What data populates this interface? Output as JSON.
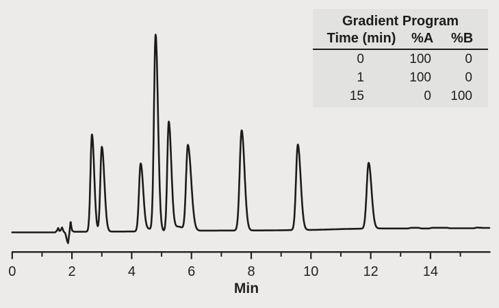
{
  "page": {
    "background_color": "#ecebe9"
  },
  "gradient_table": {
    "title": "Gradient Program",
    "columns": [
      "Time (min)",
      "%A",
      "%B"
    ],
    "rows": [
      [
        "0",
        "100",
        "0"
      ],
      [
        "1",
        "100",
        "0"
      ],
      [
        "15",
        "0",
        "100"
      ]
    ],
    "background_color": "#e2e2e0",
    "text_color": "#1c1c1c"
  },
  "chart_data": {
    "type": "line",
    "title": "",
    "xlabel": "Min",
    "ylabel": "",
    "x_range": [
      0,
      15.97
    ],
    "x_ticks_major": [
      0,
      2,
      4,
      6,
      8,
      10,
      12,
      14
    ],
    "x_ticks_minor": [
      1,
      3,
      5,
      7,
      9,
      11,
      13,
      15
    ],
    "grid": false,
    "line_color": "#1b1b1b",
    "axis_color": "#222222",
    "peaks": [
      {
        "retention_time_min": 2.67,
        "height_pct": 49.5,
        "sigma_left": 0.05,
        "sigma_right": 0.075
      },
      {
        "retention_time_min": 3.0,
        "height_pct": 43.2,
        "sigma_left": 0.05,
        "sigma_right": 0.085
      },
      {
        "retention_time_min": 4.3,
        "height_pct": 34.5,
        "sigma_left": 0.055,
        "sigma_right": 0.085
      },
      {
        "retention_time_min": 4.8,
        "height_pct": 100.0,
        "sigma_left": 0.055,
        "sigma_right": 0.08
      },
      {
        "retention_time_min": 5.24,
        "height_pct": 55.5,
        "sigma_left": 0.05,
        "sigma_right": 0.085
      },
      {
        "retention_time_min": 5.88,
        "height_pct": 43.5,
        "sigma_left": 0.06,
        "sigma_right": 0.11
      },
      {
        "retention_time_min": 7.68,
        "height_pct": 51.0,
        "sigma_left": 0.065,
        "sigma_right": 0.095
      },
      {
        "retention_time_min": 9.56,
        "height_pct": 43.5,
        "sigma_left": 0.06,
        "sigma_right": 0.095
      },
      {
        "retention_time_min": 11.93,
        "height_pct": 33.5,
        "sigma_left": 0.065,
        "sigma_right": 0.095
      }
    ],
    "cluster_valley_fills": [
      {
        "t": 4.56,
        "height_pct": 1.2,
        "sigma": 0.12
      },
      {
        "t": 5.56,
        "height_pct": 2.2,
        "sigma": 0.16
      }
    ],
    "baseline_drift_pct": [
      [
        0,
        0
      ],
      [
        1.44,
        0
      ],
      [
        2.1,
        0.3
      ],
      [
        4.0,
        0.45
      ],
      [
        5.0,
        0.55
      ],
      [
        6.35,
        0.9
      ],
      [
        8.6,
        1.0
      ],
      [
        9.3,
        1.15
      ],
      [
        10.2,
        1.3
      ],
      [
        11.2,
        1.75
      ],
      [
        12.2,
        2.0
      ],
      [
        13.25,
        2.0
      ],
      [
        13.35,
        2.35
      ],
      [
        13.6,
        2.35
      ],
      [
        13.7,
        2.0
      ],
      [
        13.95,
        2.0
      ],
      [
        14.05,
        2.35
      ],
      [
        14.55,
        2.35
      ],
      [
        14.65,
        2.1
      ],
      [
        15.45,
        2.1
      ],
      [
        15.55,
        2.45
      ],
      [
        15.8,
        2.25
      ],
      [
        15.97,
        2.25
      ]
    ],
    "solvent_front_disturbance_pct": [
      [
        1.44,
        0
      ],
      [
        1.5,
        0.9
      ],
      [
        1.54,
        2.2
      ],
      [
        1.58,
        0.7
      ],
      [
        1.62,
        0.9
      ],
      [
        1.67,
        2.4
      ],
      [
        1.72,
        0.4
      ],
      [
        1.78,
        -0.7
      ],
      [
        1.84,
        -4.6
      ],
      [
        1.87,
        -5.7
      ],
      [
        1.9,
        -2.3
      ],
      [
        1.93,
        1.5
      ],
      [
        1.955,
        5.6
      ],
      [
        1.98,
        2.6
      ],
      [
        2.01,
        0.6
      ],
      [
        2.06,
        0.1
      ],
      [
        2.1,
        0
      ]
    ]
  }
}
